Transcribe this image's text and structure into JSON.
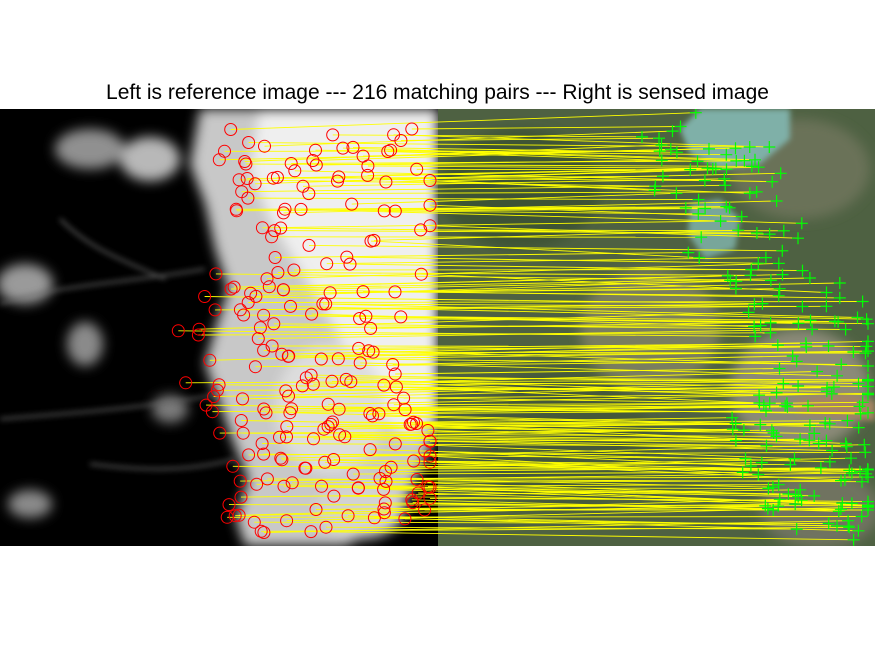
{
  "figure": {
    "title": "Left is reference image --- 216 matching pairs --- Right is sensed image"
  },
  "panels": {
    "left": {
      "role": "reference image",
      "style": "grayscale night-light imagery"
    },
    "right": {
      "role": "sensed image",
      "style": "color satellite imagery"
    }
  },
  "matches": {
    "count": 216,
    "reference_marker": "circle",
    "sensed_marker": "plus",
    "colors": {
      "reference_marker": "#ff0000",
      "sensed_marker": "#00ff00",
      "link_line": "#ffff00"
    }
  },
  "colors": {
    "background": "#ffffff",
    "reference_base": "#000000",
    "sensed_base": "#4e6142",
    "water": "#7fb0a8",
    "river": "#a58464"
  }
}
